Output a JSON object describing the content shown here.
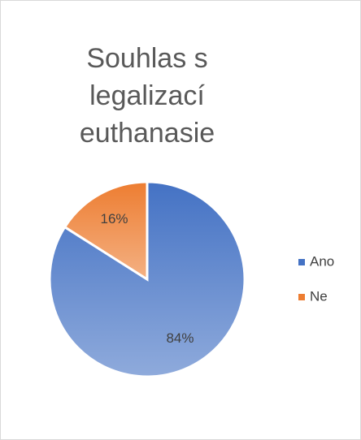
{
  "chart_data": {
    "type": "pie",
    "title": "Souhlas s legalizací euthanasie",
    "categories": [
      "Ano",
      "Ne"
    ],
    "values": [
      84,
      16
    ],
    "value_labels": [
      "84%",
      "16%"
    ],
    "colors": [
      "#4472c4",
      "#ed7d31"
    ],
    "legend": "right"
  }
}
